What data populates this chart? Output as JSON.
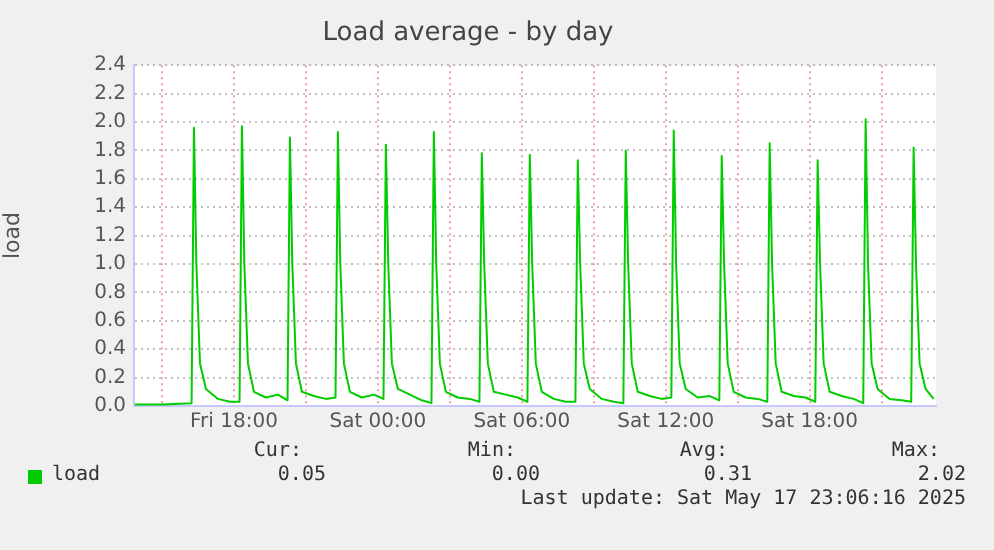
{
  "chart_data": {
    "type": "line",
    "title": "Load average - by day",
    "ylabel": "load",
    "legend": "bottom",
    "grid": true,
    "marker": "none",
    "line_style": "solid",
    "x": [
      "2025-05-16T13:52",
      "2025-05-16T15:00",
      "2025-05-16T16:14",
      "2025-05-16T16:20",
      "2025-05-16T16:26",
      "2025-05-16T16:35",
      "2025-05-16T16:50",
      "2025-05-16T17:20",
      "2025-05-16T17:50",
      "2025-05-16T18:14",
      "2025-05-16T18:20",
      "2025-05-16T18:26",
      "2025-05-16T18:35",
      "2025-05-16T18:50",
      "2025-05-16T19:20",
      "2025-05-16T19:50",
      "2025-05-16T20:14",
      "2025-05-16T20:20",
      "2025-05-16T20:26",
      "2025-05-16T20:35",
      "2025-05-16T20:50",
      "2025-05-16T21:20",
      "2025-05-16T21:50",
      "2025-05-16T22:14",
      "2025-05-16T22:20",
      "2025-05-16T22:26",
      "2025-05-16T22:35",
      "2025-05-16T22:50",
      "2025-05-16T23:20",
      "2025-05-16T23:50",
      "2025-05-17T00:14",
      "2025-05-17T00:20",
      "2025-05-17T00:26",
      "2025-05-17T00:35",
      "2025-05-17T00:50",
      "2025-05-17T01:20",
      "2025-05-17T01:50",
      "2025-05-17T02:14",
      "2025-05-17T02:20",
      "2025-05-17T02:26",
      "2025-05-17T02:35",
      "2025-05-17T02:50",
      "2025-05-17T03:20",
      "2025-05-17T03:50",
      "2025-05-17T04:14",
      "2025-05-17T04:20",
      "2025-05-17T04:26",
      "2025-05-17T04:35",
      "2025-05-17T04:50",
      "2025-05-17T05:20",
      "2025-05-17T05:50",
      "2025-05-17T06:14",
      "2025-05-17T06:20",
      "2025-05-17T06:26",
      "2025-05-17T06:35",
      "2025-05-17T06:50",
      "2025-05-17T07:20",
      "2025-05-17T07:50",
      "2025-05-17T08:14",
      "2025-05-17T08:20",
      "2025-05-17T08:26",
      "2025-05-17T08:35",
      "2025-05-17T08:50",
      "2025-05-17T09:20",
      "2025-05-17T09:50",
      "2025-05-17T10:14",
      "2025-05-17T10:20",
      "2025-05-17T10:26",
      "2025-05-17T10:35",
      "2025-05-17T10:50",
      "2025-05-17T11:20",
      "2025-05-17T11:50",
      "2025-05-17T12:14",
      "2025-05-17T12:20",
      "2025-05-17T12:26",
      "2025-05-17T12:35",
      "2025-05-17T12:50",
      "2025-05-17T13:20",
      "2025-05-17T13:50",
      "2025-05-17T14:14",
      "2025-05-17T14:20",
      "2025-05-17T14:26",
      "2025-05-17T14:35",
      "2025-05-17T14:50",
      "2025-05-17T15:20",
      "2025-05-17T15:50",
      "2025-05-17T16:14",
      "2025-05-17T16:20",
      "2025-05-17T16:26",
      "2025-05-17T16:35",
      "2025-05-17T16:50",
      "2025-05-17T17:20",
      "2025-05-17T17:50",
      "2025-05-17T18:14",
      "2025-05-17T18:20",
      "2025-05-17T18:26",
      "2025-05-17T18:35",
      "2025-05-17T18:50",
      "2025-05-17T19:20",
      "2025-05-17T19:50",
      "2025-05-17T20:14",
      "2025-05-17T20:20",
      "2025-05-17T20:26",
      "2025-05-17T20:35",
      "2025-05-17T20:50",
      "2025-05-17T21:20",
      "2025-05-17T21:50",
      "2025-05-17T22:14",
      "2025-05-17T22:20",
      "2025-05-17T22:26",
      "2025-05-17T22:35",
      "2025-05-17T22:50",
      "2025-05-17T23:10"
    ],
    "series": [
      {
        "name": "load",
        "color": "#00cc00",
        "values": [
          0.01,
          0.01,
          0.02,
          1.96,
          1.0,
          0.3,
          0.12,
          0.05,
          0.03,
          0.03,
          1.97,
          1.0,
          0.3,
          0.1,
          0.06,
          0.08,
          0.04,
          1.89,
          1.0,
          0.3,
          0.1,
          0.07,
          0.05,
          0.06,
          1.93,
          1.0,
          0.3,
          0.1,
          0.06,
          0.08,
          0.05,
          1.84,
          1.0,
          0.3,
          0.12,
          0.08,
          0.04,
          0.02,
          1.93,
          1.0,
          0.3,
          0.1,
          0.06,
          0.05,
          0.03,
          1.78,
          1.0,
          0.3,
          0.1,
          0.08,
          0.06,
          0.03,
          1.77,
          1.0,
          0.3,
          0.1,
          0.05,
          0.03,
          0.03,
          1.73,
          1.0,
          0.3,
          0.12,
          0.05,
          0.03,
          0.02,
          1.8,
          1.0,
          0.3,
          0.1,
          0.07,
          0.05,
          0.06,
          1.94,
          1.0,
          0.3,
          0.12,
          0.06,
          0.07,
          0.04,
          1.76,
          1.0,
          0.3,
          0.1,
          0.06,
          0.05,
          0.03,
          1.85,
          1.0,
          0.3,
          0.1,
          0.07,
          0.06,
          0.03,
          1.73,
          1.0,
          0.3,
          0.1,
          0.07,
          0.05,
          0.02,
          2.02,
          1.0,
          0.3,
          0.12,
          0.05,
          0.04,
          0.03,
          1.82,
          1.0,
          0.3,
          0.12,
          0.05
        ]
      }
    ],
    "xlim": [
      "2025-05-16T13:50",
      "2025-05-17T23:16"
    ],
    "xticks": [
      {
        "value": "2025-05-16T15:00",
        "label": null
      },
      {
        "value": "2025-05-16T18:00",
        "label": "Fri 18:00"
      },
      {
        "value": "2025-05-16T21:00",
        "label": null
      },
      {
        "value": "2025-05-17T00:00",
        "label": "Sat 00:00"
      },
      {
        "value": "2025-05-17T03:00",
        "label": null
      },
      {
        "value": "2025-05-17T06:00",
        "label": "Sat 06:00"
      },
      {
        "value": "2025-05-17T09:00",
        "label": null
      },
      {
        "value": "2025-05-17T12:00",
        "label": "Sat 12:00"
      },
      {
        "value": "2025-05-17T15:00",
        "label": null
      },
      {
        "value": "2025-05-17T18:00",
        "label": "Sat 18:00"
      },
      {
        "value": "2025-05-17T21:00",
        "label": null
      }
    ],
    "ylim": [
      0,
      2.4
    ],
    "yticks": [
      {
        "value": 0,
        "label": "0.0"
      },
      {
        "value": 0.2,
        "label": "0.2"
      },
      {
        "value": 0.4,
        "label": "0.4"
      },
      {
        "value": 0.6,
        "label": "0.6"
      },
      {
        "value": 0.8,
        "label": "0.8"
      },
      {
        "value": 1,
        "label": "1.0"
      },
      {
        "value": 1.2,
        "label": "1.2"
      },
      {
        "value": 1.4,
        "label": "1.4"
      },
      {
        "value": 1.6,
        "label": "1.6"
      },
      {
        "value": 1.8,
        "label": "1.8"
      },
      {
        "value": 2,
        "label": "2.0"
      },
      {
        "value": 2.2,
        "label": "2.2"
      },
      {
        "value": 2.4,
        "label": "2.4"
      }
    ],
    "annotations": [
      "Cur:",
      "Min:",
      "Avg:",
      "Max:",
      "0.05",
      "0.00",
      "0.31",
      "2.02",
      "Last update: Sat May 17 23:06:16 2025"
    ]
  }
}
